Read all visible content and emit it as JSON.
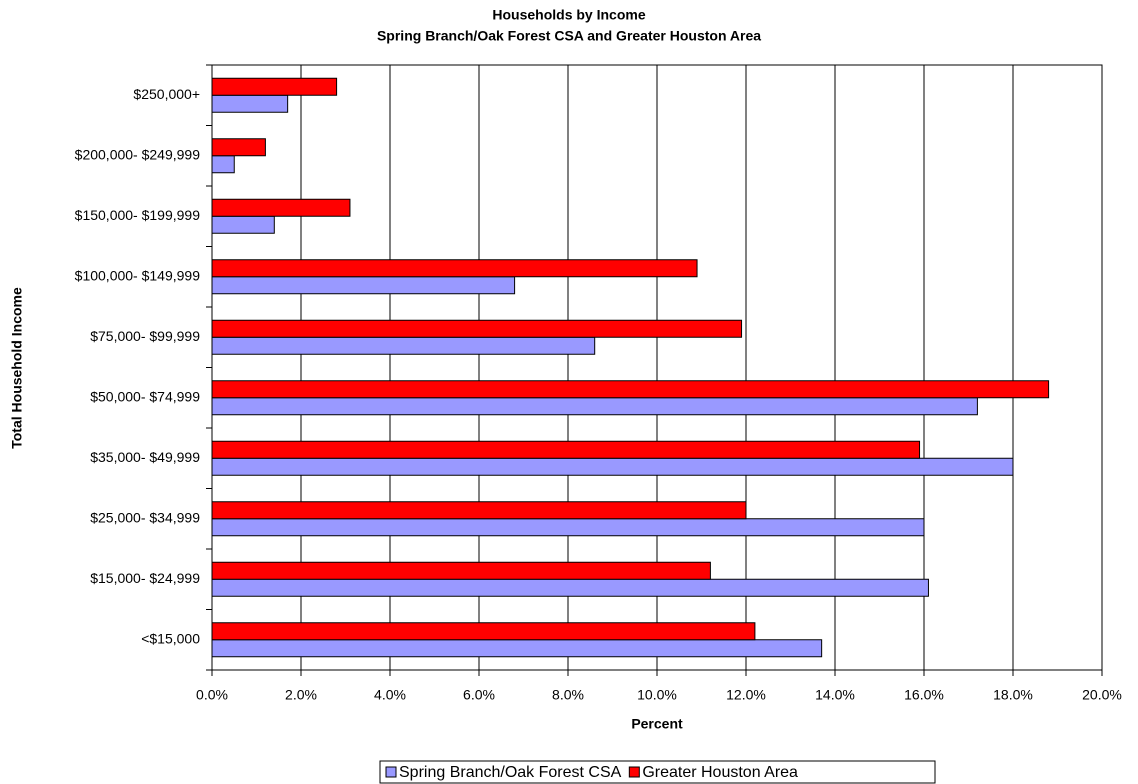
{
  "chart_data": {
    "type": "hbar",
    "title": "Households by Income",
    "subtitle": "Spring Branch/Oak Forest CSA and Greater Houston Area",
    "x_label": "Percent",
    "y_label": "Total Household Income",
    "categories": [
      "<$15,000",
      "$15,000- $24,999",
      "$25,000- $34,999",
      "$35,000- $49,999",
      "$50,000- $74,999",
      "$75,000- $99,999",
      "$100,000- $149,999",
      "$150,000- $199,999",
      "$200,000- $249,999",
      "$250,000+"
    ],
    "series": [
      {
        "name": "Spring Branch/Oak Forest CSA",
        "color": "#9999ff",
        "values": [
          13.7,
          16.1,
          16.0,
          18.0,
          17.2,
          8.6,
          6.8,
          1.4,
          0.5,
          1.7
        ]
      },
      {
        "name": "Greater Houston Area",
        "color": "#ff0000",
        "values": [
          12.2,
          11.2,
          12.0,
          15.9,
          18.8,
          11.9,
          10.9,
          3.1,
          1.2,
          2.8
        ]
      }
    ],
    "xlim": [
      0,
      20
    ],
    "xticks": [
      {
        "value": 0,
        "label": "0.0%"
      },
      {
        "value": 2,
        "label": "2.0%"
      },
      {
        "value": 4,
        "label": "4.0%"
      },
      {
        "value": 6,
        "label": "6.0%"
      },
      {
        "value": 8,
        "label": "8.0%"
      },
      {
        "value": 10,
        "label": "10.0%"
      },
      {
        "value": 12,
        "label": "12.0%"
      },
      {
        "value": 14,
        "label": "14.0%"
      },
      {
        "value": 16,
        "label": "16.0%"
      },
      {
        "value": 18,
        "label": "18.0%"
      },
      {
        "value": 20,
        "label": "20.0%"
      }
    ],
    "grid": true,
    "legend": "bottom"
  }
}
